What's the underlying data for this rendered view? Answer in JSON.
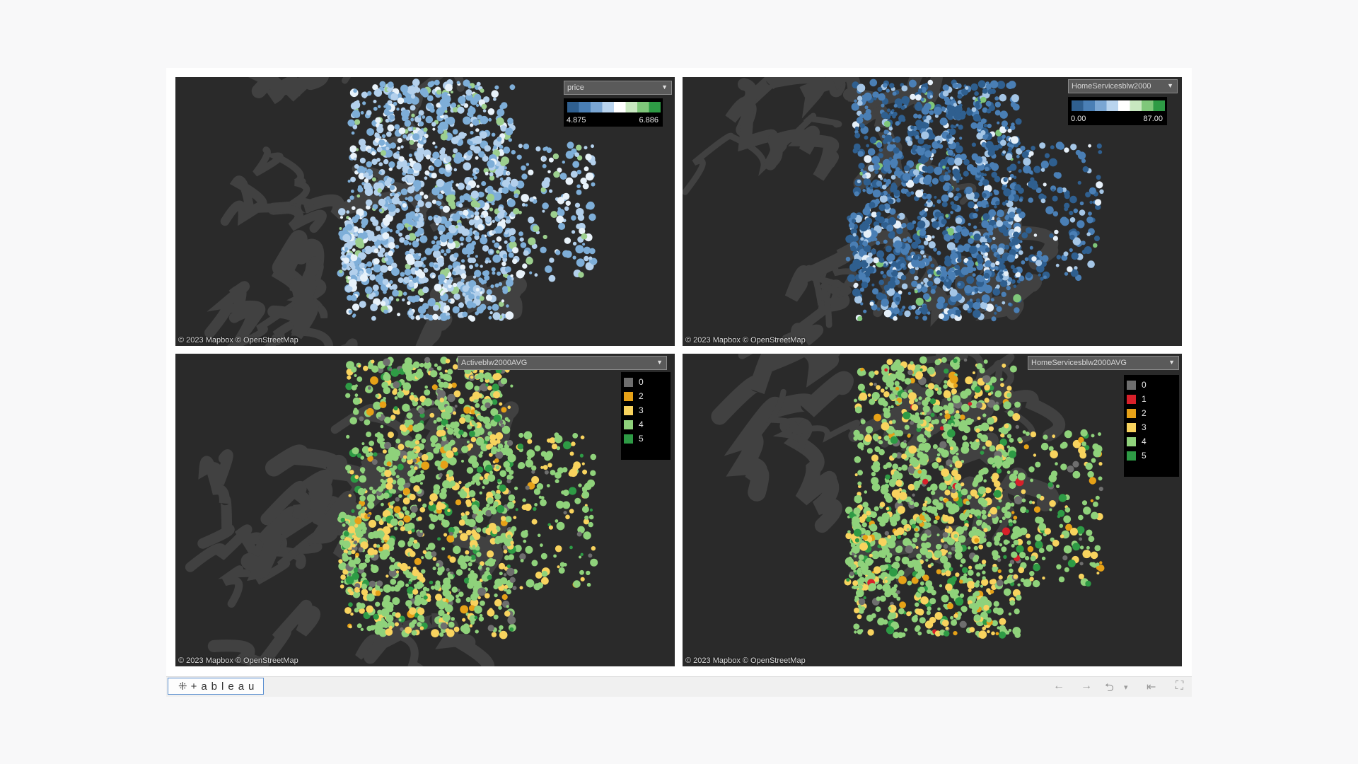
{
  "maps": {
    "tl": {
      "parameter": "price",
      "legend_min": "4.875",
      "legend_max": "6.886",
      "attribution": "© 2023 Mapbox  © OpenStreetMap"
    },
    "tr": {
      "parameter": "HomeServicesblw2000",
      "legend_min": "0.00",
      "legend_max": "87.00",
      "attribution": "© 2023 Mapbox  © OpenStreetMap"
    },
    "bl": {
      "parameter": "Activeblw2000AVG",
      "legend": [
        {
          "label": "0",
          "color": "#6e6e6e"
        },
        {
          "label": "2",
          "color": "#e6a117"
        },
        {
          "label": "3",
          "color": "#f8d35e"
        },
        {
          "label": "4",
          "color": "#8fd27b"
        },
        {
          "label": "5",
          "color": "#2e9b45"
        }
      ],
      "attribution": "© 2023 Mapbox  © OpenStreetMap"
    },
    "br": {
      "parameter": "HomeServicesblw2000AVG",
      "legend": [
        {
          "label": "0",
          "color": "#6e6e6e"
        },
        {
          "label": "1",
          "color": "#d8202a"
        },
        {
          "label": "2",
          "color": "#e6a117"
        },
        {
          "label": "3",
          "color": "#f8d35e"
        },
        {
          "label": "4",
          "color": "#8fd27b"
        },
        {
          "label": "5",
          "color": "#2e9b45"
        }
      ],
      "attribution": "© 2023 Mapbox  © OpenStreetMap"
    }
  },
  "colors": {
    "ramp_blue_green": [
      "#2f5f8f",
      "#4a7fb5",
      "#7aa6d3",
      "#b9d4ee",
      "#ffffff",
      "#c8e8c0",
      "#7fc77a",
      "#2e9b45"
    ],
    "map_land": "#2a2a2a",
    "map_water": "#414141"
  },
  "toolbar": {
    "logo_text": "+ableau",
    "logo_icon": "tableau-cross-icon",
    "undo_icon": "←",
    "redo_icon": "→",
    "revert_icon": "⮌",
    "dropdown_icon": "▾",
    "reset_icon": "⇤",
    "fullscreen_icon": "⛶"
  }
}
